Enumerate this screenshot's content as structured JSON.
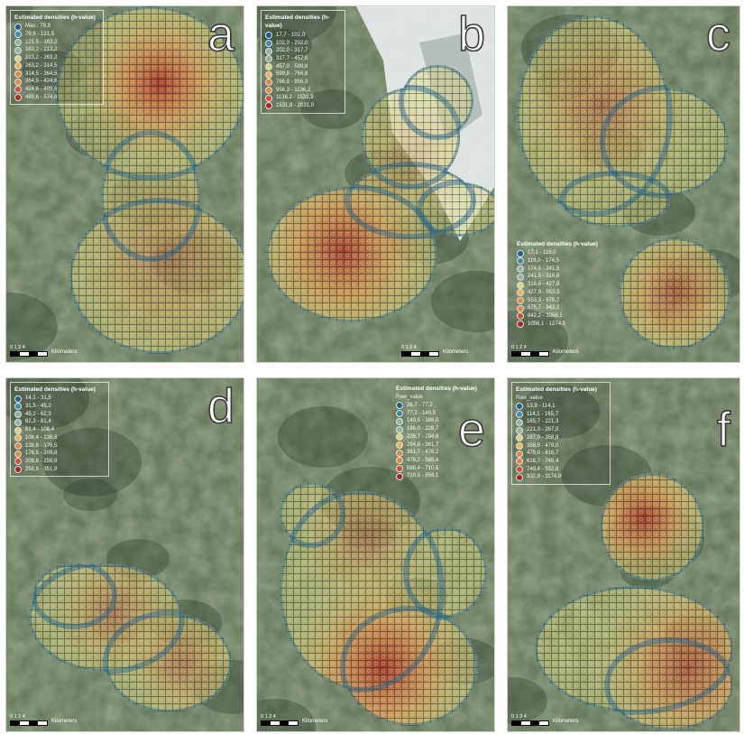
{
  "colors": {
    "ramp": [
      "#1f5f8b",
      "#3c8fb0",
      "#8fb7a0",
      "#d9d57a",
      "#e8b35a",
      "#e08a48",
      "#c9532f",
      "#a62a22"
    ],
    "grid_line": "#0c1a22",
    "aerial_base": "#6a7a5c",
    "snow": "#e9eef0",
    "water": "#3e4d55"
  },
  "panels": [
    {
      "id": "a",
      "letter": "a",
      "legend": {
        "title": "Estimated densities (h-value)",
        "subtitle": "",
        "items": [
          "Max.: 79,9",
          "79,9 - 121,5",
          "121,5 - 163,2",
          "163,2 - 213,2",
          "213,2 - 263,2",
          "263,2 - 314,5",
          "314,5 - 364,5",
          "364,5 - 424,6",
          "424,6 - 499,6",
          "499,6 - 574,6"
        ]
      },
      "scale": {
        "ticks": "0 1 2 4",
        "unit": "Kilometers"
      }
    },
    {
      "id": "b",
      "letter": "b",
      "legend": {
        "title": "Estimated densities (h-value)",
        "subtitle": "",
        "items": [
          "17,7 - 102,0",
          "102,0 - 202,0",
          "202,0 - 317,7",
          "317,7 - 457,0",
          "457,0 - 599,8",
          "599,8 - 766,8",
          "766,8 - 956,3",
          "956,3 - 1136,2",
          "1136,2 - 1531,9",
          "1531,9 - 2031,9"
        ]
      },
      "scale": {
        "ticks": "0 1 2 4",
        "unit": "Kilometers"
      }
    },
    {
      "id": "c",
      "letter": "c",
      "legend": {
        "title": "Estimated densities (h-value)",
        "subtitle": "",
        "items": [
          "17,1 - 116,0",
          "116,0 - 174,5",
          "174,5 - 241,5",
          "241,5 - 316,8",
          "316,8 - 427,9",
          "427,9 - 553,3",
          "553,3 - 675,7",
          "675,7 - 842,2",
          "842,2 - 1056,1",
          "1056,1 - 1274,5"
        ]
      },
      "scale": {
        "ticks": "0 1 2 4",
        "unit": "Kilometers"
      }
    },
    {
      "id": "d",
      "letter": "d",
      "legend": {
        "title": "Estimated densities (h-value)",
        "subtitle": "",
        "items": [
          "14,1 - 31,5",
          "31,5 - 45,2",
          "45,2 - 62,3",
          "62,3 - 81,4",
          "81,4 - 108,4",
          "108,4 - 138,8",
          "138,8 - 176,5",
          "176,5 - 209,8",
          "209,8 - 258,8",
          "258,8 - 351,9"
        ]
      },
      "scale": {
        "ticks": "0 1 2 4",
        "unit": "Kilometers"
      }
    },
    {
      "id": "e",
      "letter": "e",
      "legend": {
        "title": "Estimated densities (h-value)",
        "subtitle": "Raw_value",
        "items": [
          "26,7 - 77,2",
          "77,2 - 140,5",
          "140,5 - 186,0",
          "186,0 - 226,7",
          "226,7 - 294,8",
          "294,8 - 361,7",
          "361,7 - 476,2",
          "476,2 - 588,4",
          "588,4 - 710,5",
          "710,5 - 856,1"
        ]
      },
      "scale": {
        "ticks": "0 1 2 4",
        "unit": "Kilometers"
      }
    },
    {
      "id": "f",
      "letter": "f",
      "legend": {
        "title": "Estimated densities (h-value)",
        "subtitle": "Raw_value",
        "items": [
          "13,9 - 114,1",
          "114,1 - 165,7",
          "165,7 - 221,3",
          "221,3 - 287,0",
          "287,0 - 358,8",
          "358,8 - 479,0",
          "479,0 - 616,7",
          "616,7 - 749,4",
          "749,4 - 932,8",
          "932,8 - 1174,9"
        ]
      },
      "scale": {
        "ticks": "0 1 2 4",
        "unit": "Kilometers"
      }
    }
  ]
}
